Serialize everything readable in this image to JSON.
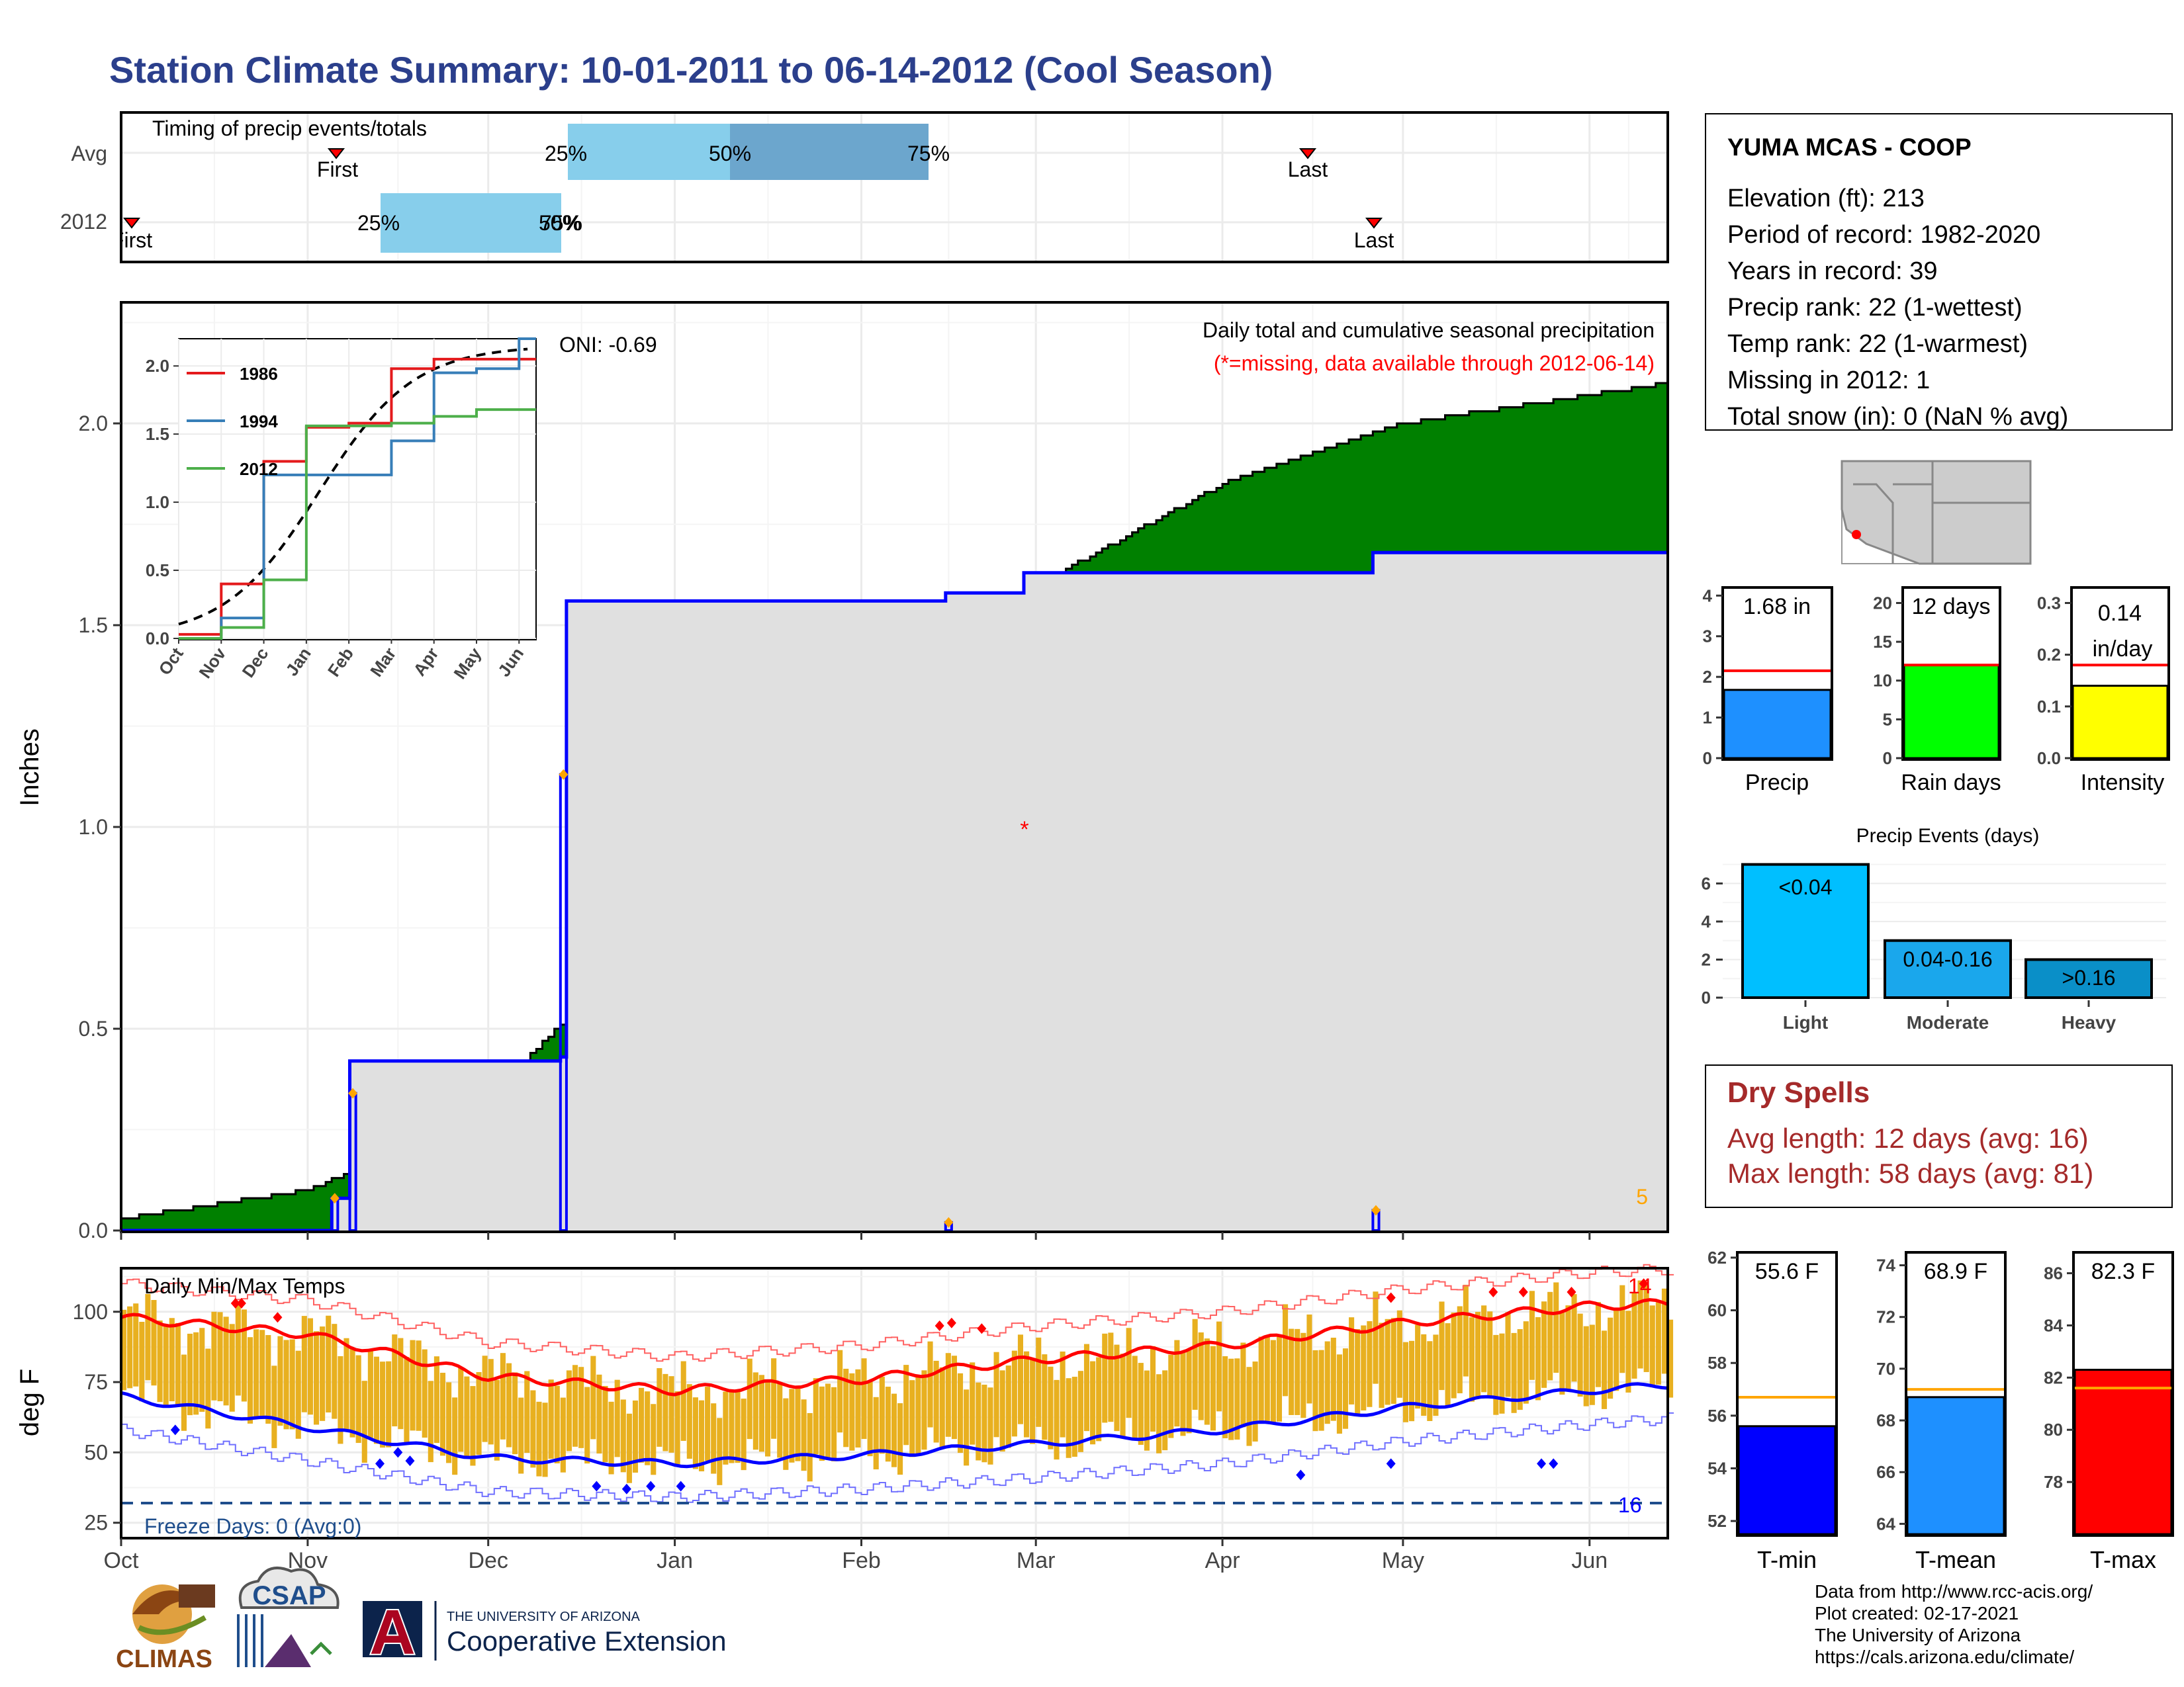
{
  "title": "Station Climate Summary: 10-01-2011 to 06-14-2012 (Cool Season)",
  "timing": {
    "title": "Timing of precip events/totals",
    "rows": [
      "Avg",
      "2012"
    ],
    "avg": {
      "first_label": "First",
      "last_label": "Last",
      "p25": "25%",
      "p50": "50%",
      "p75": "75%"
    },
    "y2012": {
      "first_label": "First",
      "last_label": "Last",
      "p25": "25%",
      "p50": "50%",
      "p75": "75%"
    }
  },
  "precip": {
    "title": "Daily total and cumulative seasonal precipitation",
    "subtitle": "(*=missing, data available through 2012-06-14)",
    "oni": "ONI: -0.69",
    "ylabel": "Inches",
    "yticks": [
      "0.0",
      "0.5",
      "1.0",
      "1.5",
      "2.0"
    ],
    "count_label": "5"
  },
  "inset": {
    "yticks": [
      "0.0",
      "0.5",
      "1.0",
      "1.5",
      "2.0"
    ],
    "xticks": [
      "Oct",
      "Nov",
      "Dec",
      "Jan",
      "Feb",
      "Mar",
      "Apr",
      "May",
      "Jun"
    ],
    "legend": [
      "1986",
      "1994",
      "2012"
    ]
  },
  "temps": {
    "title": "Daily Min/Max Temps",
    "ylabel": "deg F",
    "yticks": [
      "25",
      "50",
      "75",
      "100"
    ],
    "freeze": "Freeze Days: 0 (Avg:0)",
    "max_count": "14",
    "min_count": "16"
  },
  "months": [
    "Oct",
    "Nov",
    "Dec",
    "Jan",
    "Feb",
    "Mar",
    "Apr",
    "May",
    "Jun"
  ],
  "station": {
    "name": "YUMA MCAS - COOP",
    "lines": [
      "Elevation (ft): 213",
      "Period of record: 1982-2020",
      "Years in record: 39",
      "Precip rank: 22 (1-wettest)",
      "Temp rank: 22 (1-warmest)",
      "Missing in 2012: 1",
      "Total snow (in): 0 (NaN % avg)"
    ]
  },
  "bars_top": [
    {
      "label": "Precip",
      "value_text": "1.68 in",
      "yticks": [
        "0",
        "1",
        "2",
        "3",
        "4"
      ]
    },
    {
      "label": "Rain days",
      "value_text": "12 days",
      "yticks": [
        "0",
        "5",
        "10",
        "15",
        "20"
      ]
    },
    {
      "label": "Intensity",
      "value_text": "0.14",
      "value_text2": "in/day",
      "yticks": [
        "0.0",
        "0.1",
        "0.2",
        "0.3"
      ]
    }
  ],
  "events": {
    "title": "Precip Events (days)",
    "yticks": [
      "0",
      "2",
      "4",
      "6"
    ],
    "bars": [
      {
        "label": "Light",
        "inner": "<0.04"
      },
      {
        "label": "Moderate",
        "inner": "0.04-0.16"
      },
      {
        "label": "Heavy",
        "inner": ">0.16"
      }
    ]
  },
  "dry": {
    "title": "Dry Spells",
    "avg": "Avg length: 12 days (avg: 16)",
    "max": "Max length: 58 days (avg: 81)"
  },
  "tbars": [
    {
      "label": "T-min",
      "value_text": "55.6 F",
      "yticks": [
        "52",
        "54",
        "56",
        "58",
        "60",
        "62"
      ]
    },
    {
      "label": "T-mean",
      "value_text": "68.9 F",
      "yticks": [
        "64",
        "66",
        "68",
        "70",
        "72",
        "74"
      ]
    },
    {
      "label": "T-max",
      "value_text": "82.3 F",
      "yticks": [
        "78",
        "80",
        "82",
        "84",
        "86"
      ]
    }
  ],
  "footer": [
    "Data from http://www.rcc-acis.org/",
    "Plot created: 02-17-2021",
    "The University of Arizona",
    "https://cals.arizona.edu/climate/"
  ],
  "logos": {
    "climas": "CLIMAS",
    "csap": "CSAP",
    "ua_small": "THE UNIVERSITY OF ARIZONA",
    "ua_big": "Cooperative Extension",
    "ua_letter": "A"
  },
  "colors": {
    "title": "#2B3F8C",
    "green": "#008000",
    "brown": "#8B5A00",
    "gray": "#E0E0E0",
    "blue": "#0000FF",
    "orange": "#E8B020",
    "red": "#FF0000",
    "precip": "#1E90FF",
    "raindays": "#00FF00",
    "intensity": "#FFFF00",
    "drytext": "#A52A2A"
  },
  "chart_data": [
    {
      "type": "area",
      "title": "Daily total and cumulative seasonal precipitation",
      "ylabel": "Inches",
      "ylim": [
        0,
        2.3
      ],
      "xlim": [
        "2011-10-01",
        "2012-06-14"
      ],
      "series": [
        {
          "x": [
            "2011-10-01",
            "2011-11-05",
            "2011-11-08",
            "2011-12-13",
            "2011-12-14",
            "2012-02-15",
            "2012-02-28",
            "2012-04-26",
            "2012-06-14"
          ],
          "y": [
            0.0,
            0.08,
            0.42,
            0.43,
            1.56,
            1.58,
            1.63,
            1.68,
            1.68
          ]
        },
        {
          "x": [
            "2011-10-01",
            "2011-11-01",
            "2011-11-15",
            "2011-12-01",
            "2011-12-12",
            "2012-01-01",
            "2012-02-01",
            "2012-03-01",
            "2012-04-01",
            "2012-05-01",
            "2012-06-14"
          ],
          "y": [
            0.03,
            0.1,
            0.19,
            0.33,
            0.5,
            0.74,
            1.1,
            1.6,
            1.85,
            2.0,
            2.1
          ]
        }
      ],
      "daily_precip": [
        {
          "x": "2011-11-05",
          "y": 0.08
        },
        {
          "x": "2011-11-08",
          "y": 0.34
        },
        {
          "x": "2011-12-13",
          "y": 1.13
        },
        {
          "x": "2012-02-15",
          "y": 0.02
        },
        {
          "x": "2012-04-26",
          "y": 0.05
        }
      ],
      "annotation": "ONI: -0.69"
    },
    {
      "type": "line",
      "ylim": [
        0,
        2.2
      ],
      "categories": [
        "Oct",
        "Nov",
        "Dec",
        "Jan",
        "Feb",
        "Mar",
        "Apr",
        "May",
        "Jun"
      ],
      "series": [
        {
          "name": "1986",
          "values": [
            0.03,
            0.4,
            1.3,
            1.55,
            1.58,
            1.98,
            2.05,
            2.05,
            2.05
          ]
        },
        {
          "name": "1994",
          "values": [
            0.0,
            0.15,
            1.2,
            1.2,
            1.2,
            1.45,
            1.95,
            1.98,
            2.2
          ]
        },
        {
          "name": "2012",
          "values": [
            0.0,
            0.08,
            0.43,
            1.56,
            1.56,
            1.58,
            1.63,
            1.68,
            1.68
          ]
        }
      ]
    },
    {
      "type": "line",
      "title": "Daily Min/Max Temps",
      "ylabel": "deg F",
      "ylim": [
        20,
        115
      ],
      "x": [
        "2011-10-01",
        "2011-11-01",
        "2011-12-01",
        "2012-01-01",
        "2012-02-01",
        "2012-03-01",
        "2012-04-01",
        "2012-05-01",
        "2012-06-01",
        "2012-06-14"
      ],
      "series": [
        {
          "name": "avg max",
          "values": [
            98,
            92,
            77,
            72,
            76,
            83,
            88,
            96,
            102,
            103
          ]
        },
        {
          "name": "avg min",
          "values": [
            70,
            59,
            48,
            46,
            49,
            53,
            58,
            66,
            72,
            74
          ]
        }
      ],
      "freeze_line": 32
    },
    {
      "type": "bar",
      "categories": [
        "Precip"
      ],
      "values": [
        1.68
      ],
      "avg": 2.15,
      "ylim": [
        0,
        4.2
      ]
    },
    {
      "type": "bar",
      "categories": [
        "Rain days"
      ],
      "values": [
        12
      ],
      "avg": 12,
      "ylim": [
        0,
        22
      ]
    },
    {
      "type": "bar",
      "categories": [
        "Intensity"
      ],
      "values": [
        0.14
      ],
      "avg": 0.18,
      "ylim": [
        0,
        0.33
      ]
    },
    {
      "type": "bar",
      "title": "Precip Events (days)",
      "categories": [
        "Light",
        "Moderate",
        "Heavy"
      ],
      "values": [
        7,
        3,
        2
      ],
      "ylim": [
        0,
        7.3
      ]
    },
    {
      "type": "bar",
      "categories": [
        "T-min"
      ],
      "values": [
        55.6
      ],
      "avg": 56.7,
      "ylim": [
        51.5,
        62.2
      ]
    },
    {
      "type": "bar",
      "categories": [
        "T-mean"
      ],
      "values": [
        68.9
      ],
      "avg": 69.2,
      "ylim": [
        63.6,
        74.5
      ]
    },
    {
      "type": "bar",
      "categories": [
        "T-max"
      ],
      "values": [
        82.3
      ],
      "avg": 81.6,
      "ylim": [
        76,
        86.8
      ]
    }
  ]
}
